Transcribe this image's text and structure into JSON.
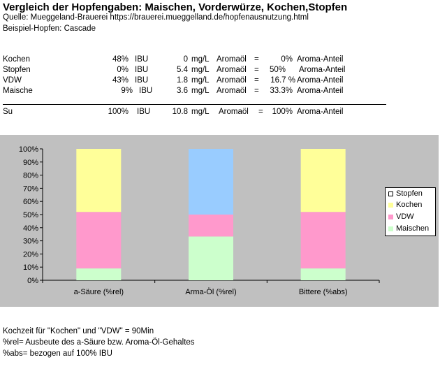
{
  "header": {
    "title": "Vergleich der Hopfengaben: Maischen, Vorderwürze, Kochen,Stopfen",
    "source": "Quelle: Mueggeland-Brauerei https://brauerei.mueggelland.de/hopfenausnutzung.html",
    "example": "Beispiel-Hopfen: Cascade"
  },
  "table": {
    "rows": [
      {
        "name": "Kochen",
        "pct": "48%",
        "ibu": "IBU",
        "val": "0",
        "unit": "mg/L",
        "oil": "Aromaöl",
        "eq": "=",
        "share": "0%",
        "label": "Aroma-Anteil"
      },
      {
        "name": "Stopfen",
        "pct": "0%",
        "ibu": "IBU",
        "val": "5.4",
        "unit": "mg/L",
        "oil": "Aromaöl",
        "eq": "=",
        "share": "50%",
        "label": "Aroma-Anteil"
      },
      {
        "name": "VDW",
        "pct": "43%",
        "ibu": "IBU",
        "val": "1.8",
        "unit": "mg/L",
        "oil": "Aromaöl",
        "eq": "=",
        "share": "16.7 %",
        "label": "Aroma-Anteil"
      },
      {
        "name": "Maische",
        "pct": "9%",
        "ibu": "IBU",
        "val": "3.6",
        "unit": "mg/L",
        "oil": "Aromaöl",
        "eq": "=",
        "share": "33.3%",
        "label": "Aroma-Anteil"
      }
    ],
    "sum": {
      "name": "Su",
      "pct": "100%",
      "ibu": "IBU",
      "val": "10.8",
      "unit": "mg/L",
      "oil": "Aromaöl",
      "eq": "=",
      "share": "100%",
      "label": "Aroma-Anteil"
    }
  },
  "chart_data": {
    "type": "bar",
    "stacked": true,
    "categories": [
      "a-Säure (%rel)",
      "Arma-Öl (%rel)",
      "Bittere (%abs)"
    ],
    "series": [
      {
        "name": "Maischen",
        "color": "#ccffcc",
        "values": [
          9,
          33.3,
          9
        ]
      },
      {
        "name": "VDW",
        "color": "#ff99cc",
        "values": [
          43,
          16.7,
          43
        ]
      },
      {
        "name": "Kochen",
        "color": "#ffff99",
        "values": [
          48,
          0,
          48
        ]
      },
      {
        "name": "Stopfen",
        "color": "#99ccff",
        "values": [
          0,
          50,
          0
        ]
      }
    ],
    "legend": [
      {
        "name": "Stopfen",
        "color": "#99ccff"
      },
      {
        "name": "Kochen",
        "color": "#ffff99"
      },
      {
        "name": "VDW",
        "color": "#ff99cc"
      },
      {
        "name": "Maischen",
        "color": "#ccffcc"
      }
    ],
    "ylim": [
      0,
      100
    ],
    "yticks": [
      "0%",
      "10%",
      "20%",
      "30%",
      "40%",
      "50%",
      "60%",
      "70%",
      "80%",
      "90%",
      "100%"
    ],
    "grid": false,
    "legend_position": "right",
    "background": "#c0c0c0"
  },
  "footer": {
    "line1": "Kochzeit für  \"Kochen\" und \"VDW\" = 90Min",
    "line2": "%rel= Ausbeute des a-Säure bzw. Aroma-Öl-Gehaltes",
    "line3": "%abs= bezogen auf 100% IBU"
  }
}
